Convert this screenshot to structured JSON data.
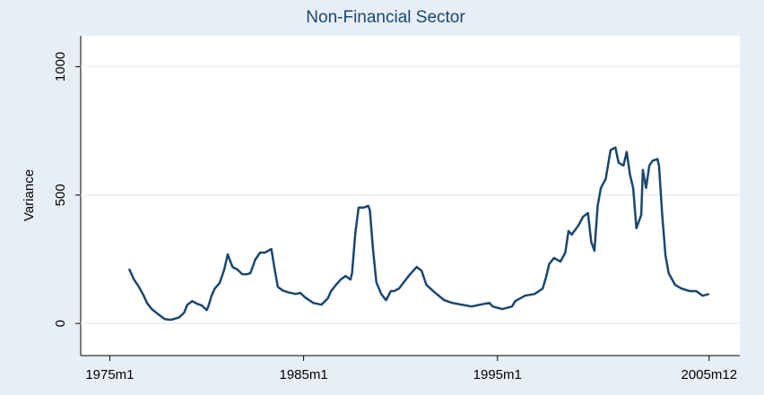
{
  "chart_data": {
    "type": "line",
    "title": "Non-Financial Sector",
    "ylabel": "Variance",
    "x": [
      "1976m1",
      "1976m4",
      "1976m7",
      "1976m10",
      "1976m12",
      "1977m3",
      "1977m8",
      "1977m11",
      "1978m3",
      "1978m8",
      "1978m11",
      "1979m1",
      "1979m4",
      "1979m7",
      "1979m10",
      "1980m1",
      "1980m2",
      "1980m4",
      "1980m6",
      "1980m9",
      "1980m12",
      "1981m2",
      "1981m5",
      "1981m8",
      "1981m11",
      "1982m2",
      "1982m4",
      "1982m7",
      "1982m10",
      "1983m1",
      "1983m5",
      "1983m7",
      "1983m9",
      "1983m12",
      "1984m3",
      "1984m8",
      "1984m11",
      "1985m2",
      "1985m7",
      "1985m12",
      "1986m4",
      "1986m6",
      "1986m9",
      "1986m12",
      "1987m3",
      "1987m6",
      "1987m7",
      "1987m9",
      "1987m11",
      "1988m2",
      "1988m5",
      "1988m6",
      "1988m8",
      "1988m10",
      "1989m1",
      "1989m4",
      "1989m7",
      "1989m9",
      "1989m12",
      "1990m6",
      "1990m11",
      "1991m2",
      "1991m5",
      "1991m10",
      "1992m4",
      "1992m9",
      "1993m3",
      "1993m9",
      "1994m2",
      "1994m8",
      "1994m10",
      "1995m4",
      "1995m10",
      "1995m12",
      "1996m6",
      "1996m12",
      "1997m5",
      "1997m7",
      "1997m9",
      "1997m12",
      "1998m4",
      "1998m7",
      "1998m9",
      "1998m11",
      "1999m3",
      "1999m6",
      "1999m9",
      "1999m11",
      "2000m1",
      "2000m3",
      "2000m5",
      "2000m8",
      "2000m11",
      "2001m2",
      "2001m4",
      "2001m7",
      "2001m9",
      "2001m11",
      "2002m1",
      "2002m3",
      "2002m6",
      "2002m7",
      "2002m9",
      "2002m11",
      "2003m1",
      "2003m4",
      "2003m5",
      "2003m7",
      "2003m9",
      "2003m11",
      "2004m3",
      "2004m7",
      "2004m12",
      "2005m4",
      "2005m8",
      "2005m12"
    ],
    "series": [
      {
        "name": "Variance",
        "color": "#1a476f",
        "values": [
          213,
          171,
          143,
          108,
          80,
          56,
          31,
          17,
          14,
          24,
          42,
          73,
          87,
          77,
          70,
          52,
          66,
          108,
          136,
          157,
          213,
          269,
          220,
          210,
          192,
          192,
          196,
          248,
          276,
          276,
          290,
          213,
          143,
          129,
          122,
          115,
          119,
          101,
          80,
          73,
          98,
          126,
          150,
          171,
          185,
          171,
          196,
          353,
          451,
          451,
          458,
          440,
          283,
          161,
          115,
          91,
          126,
          126,
          136,
          185,
          220,
          206,
          150,
          122,
          91,
          80,
          73,
          66,
          73,
          80,
          66,
          56,
          66,
          87,
          108,
          115,
          136,
          178,
          231,
          255,
          241,
          276,
          360,
          346,
          381,
          416,
          430,
          318,
          283,
          458,
          528,
          563,
          675,
          685,
          626,
          615,
          668,
          580,
          528,
          371,
          423,
          598,
          528,
          615,
          633,
          640,
          615,
          423,
          266,
          196,
          150,
          136,
          126,
          126,
          108,
          115
        ]
      }
    ],
    "xlim": [
      "1973m7",
      "2007m7"
    ],
    "xticks": [
      "1975m1",
      "1985m1",
      "1995m1",
      "2005m12"
    ],
    "ylim": [
      -125,
      1120
    ],
    "yticks": [
      0,
      500,
      1000
    ],
    "grid": true
  }
}
